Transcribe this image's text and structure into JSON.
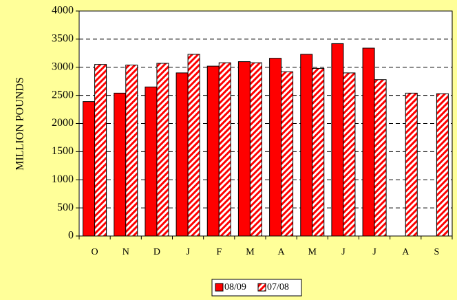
{
  "chart_data": {
    "type": "bar",
    "y_label": "MILLION POUNDS",
    "categories": [
      "O",
      "N",
      "D",
      "J",
      "F",
      "M",
      "A",
      "M",
      "J",
      "J",
      "A",
      "S"
    ],
    "series": [
      {
        "name": "08/09",
        "color": "#ff0000",
        "hatch": false,
        "values": [
          2390,
          2540,
          2650,
          2900,
          3020,
          3100,
          3160,
          3230,
          3420,
          3340,
          null,
          null
        ]
      },
      {
        "name": "07/08",
        "color": "#ff0000",
        "hatch": true,
        "values": [
          3050,
          3040,
          3070,
          3230,
          3080,
          3080,
          2920,
          2980,
          2900,
          2780,
          2540,
          2530
        ]
      }
    ],
    "ylim": [
      0,
      4000
    ],
    "yticks": [
      0,
      500,
      1000,
      1500,
      2000,
      2500,
      3000,
      3500,
      4000
    ],
    "grid": true,
    "legend": "bottom"
  }
}
